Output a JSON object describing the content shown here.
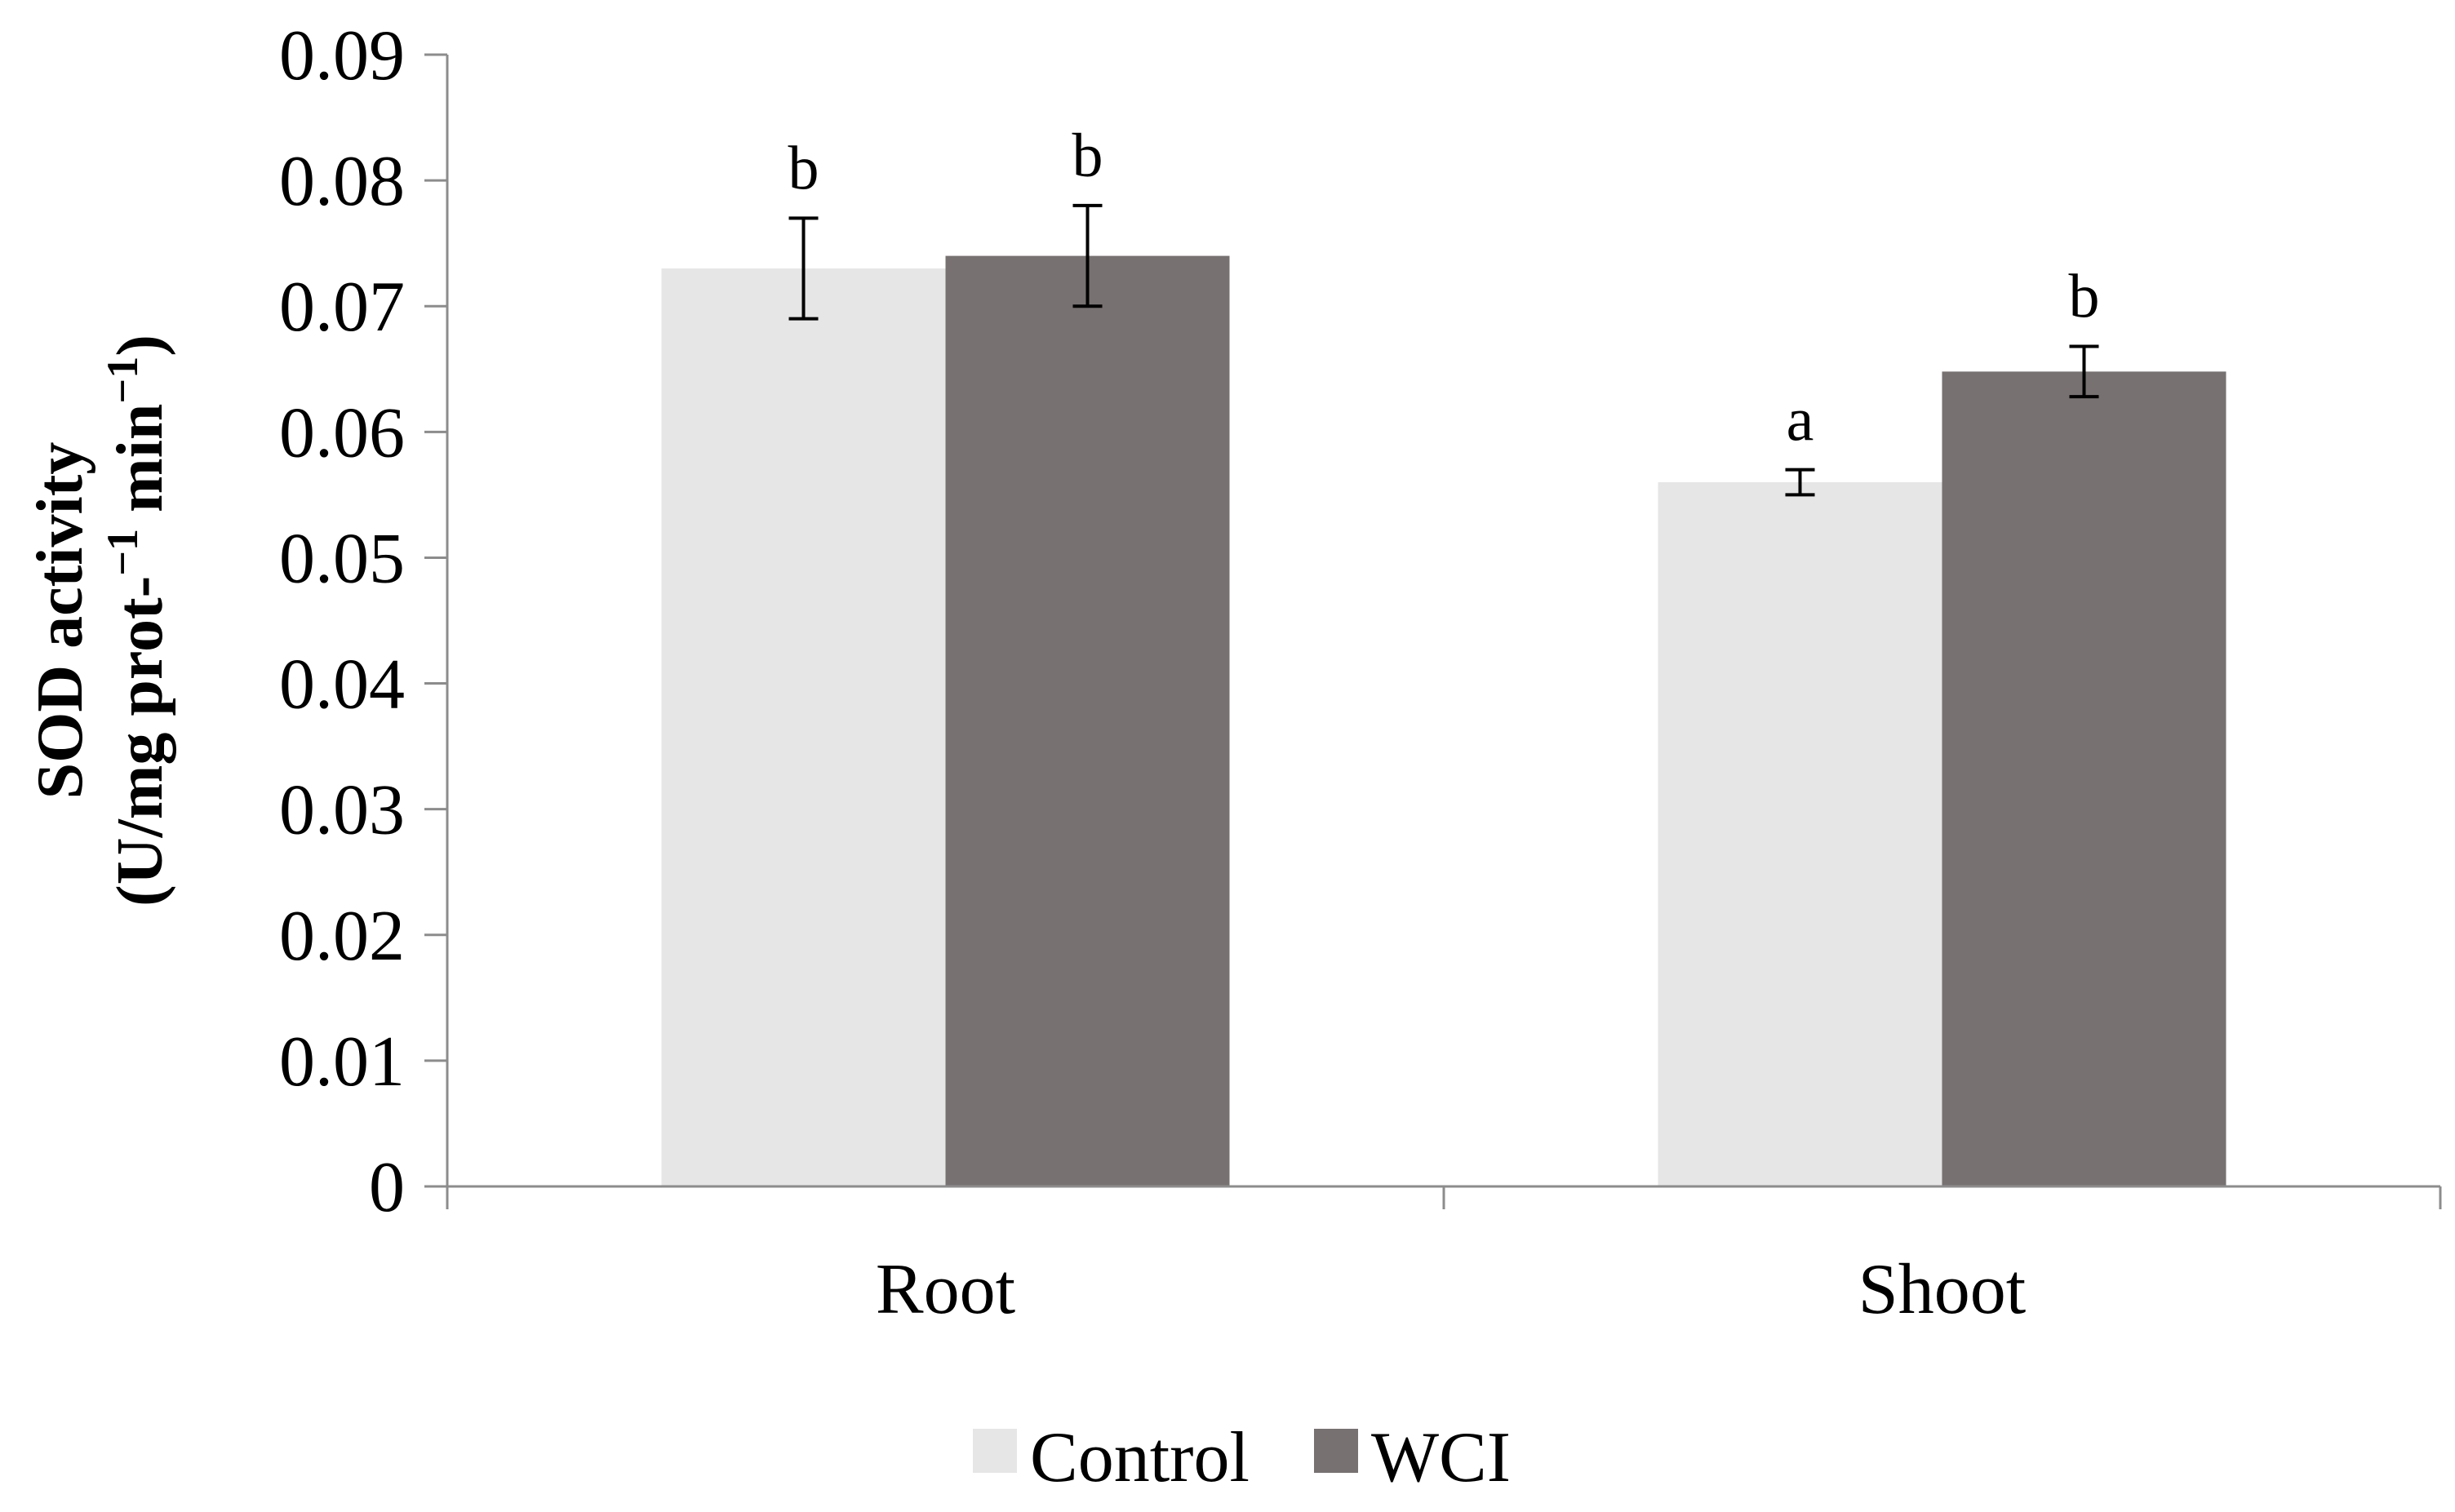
{
  "chart_data": {
    "type": "bar",
    "title": "",
    "xlabel": "",
    "ylabel_line1": "SOD activity",
    "ylabel_line2_parts": [
      "(U/mg prot-",
      "−1",
      " min",
      "−1",
      ")"
    ],
    "categories": [
      "Root",
      "Shoot"
    ],
    "series": [
      {
        "name": "Control",
        "color": "#e6e6e6",
        "values": [
          0.073,
          0.056
        ],
        "errors": [
          0.004,
          0.001
        ],
        "labels": [
          "b",
          "a"
        ]
      },
      {
        "name": "WCI",
        "color": "#777171",
        "values": [
          0.074,
          0.0648
        ],
        "errors": [
          0.004,
          0.002
        ],
        "labels": [
          "b",
          "b"
        ]
      }
    ],
    "ylim": [
      0,
      0.09
    ],
    "yticks": [
      0,
      0.01,
      0.02,
      0.03,
      0.04,
      0.05,
      0.06,
      0.07,
      0.08,
      0.09
    ],
    "ytick_labels": [
      "0",
      "0.01",
      "0.02",
      "0.03",
      "0.04",
      "0.05",
      "0.06",
      "0.07",
      "0.08",
      "0.09"
    ],
    "grid": false,
    "legend_position": "bottom-center"
  }
}
